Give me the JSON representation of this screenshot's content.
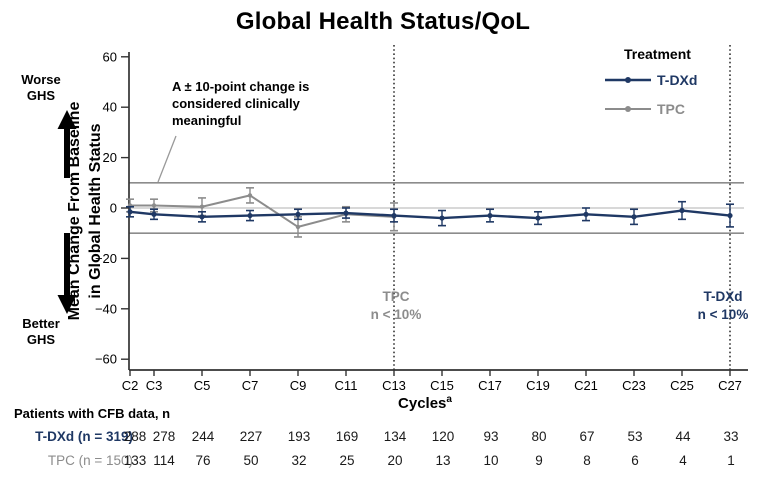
{
  "title": "Global Health Status/QoL",
  "colors": {
    "tdxd": "#1f3864",
    "tpc": "#8c8c8c",
    "reference_line": "#8c8c8c",
    "zero_line": "#b0b0b0",
    "axis": "#333333",
    "dashed_line": "#262626",
    "annotation_leader": "#999999",
    "table_values": "#1a1a1a"
  },
  "left_labels": {
    "worse_line1": "Worse",
    "worse_line2": "GHS",
    "better_line1": "Better",
    "better_line2": "GHS"
  },
  "y_axis": {
    "title_line1": "Mean Change From Baseline",
    "title_line2": "in Global Health Status"
  },
  "x_axis": {
    "label": "Cycles",
    "superscript": "a"
  },
  "annotation": {
    "line1": "A ± 10-point change is",
    "line2": "considered clinically",
    "line3": "meaningful"
  },
  "legend": {
    "title": "Treatment",
    "items": [
      {
        "label": "T-DXd",
        "color": "#1f3864"
      },
      {
        "label": "TPC",
        "color": "#8c8c8c"
      }
    ]
  },
  "dropouts": {
    "tpc_line1": "TPC",
    "tpc_line2": "n < 10%",
    "tdxd_line1": "T-DXd",
    "tdxd_line2": "n < 10%"
  },
  "chart_data": {
    "type": "line",
    "title": "Global Health Status/QoL",
    "xlabel": "Cycles",
    "ylabel": "Mean Change From Baseline in Global Health Status",
    "ylim": [
      -60,
      60
    ],
    "y_ticks": [
      60,
      40,
      20,
      0,
      -20,
      -40,
      -60
    ],
    "categories": [
      "C2",
      "C3",
      "C5",
      "C7",
      "C9",
      "C11",
      "C13",
      "C15",
      "C17",
      "C19",
      "C21",
      "C23",
      "C25",
      "C27"
    ],
    "cycles": [
      2,
      3,
      5,
      7,
      9,
      11,
      13,
      15,
      17,
      19,
      21,
      23,
      25,
      27
    ],
    "reference_lines": [
      10,
      0,
      -10
    ],
    "grid": false,
    "legend_position": "top-right",
    "series": [
      {
        "name": "T-DXd",
        "color": "#1f3864",
        "values": [
          -1.5,
          -2.5,
          -3.5,
          -3,
          -2.5,
          -2,
          -3,
          -4,
          -3,
          -4,
          -2.5,
          -3.5,
          -1,
          -3
        ],
        "errors": [
          2,
          2,
          2,
          2,
          2,
          2,
          2.5,
          3,
          2.5,
          2.5,
          2.5,
          3,
          3.5,
          4.5
        ]
      },
      {
        "name": "TPC",
        "color": "#8c8c8c",
        "values": [
          1,
          1,
          0.5,
          5,
          -7.5,
          -2.5,
          -3.5,
          null,
          null,
          null,
          null,
          null,
          null,
          null
        ],
        "errors": [
          2.5,
          2.5,
          3.5,
          3,
          4,
          3,
          5.5,
          null,
          null,
          null,
          null,
          null,
          null,
          null
        ]
      }
    ],
    "vlines": [
      {
        "cycle": 13,
        "label": "TPC n < 10%"
      },
      {
        "cycle": 27,
        "label": "T-DXd n < 10%"
      }
    ]
  },
  "table": {
    "header": "Patients with CFB data, n",
    "rows": [
      {
        "label": "T-DXd (n = 319)",
        "color": "#1f3864",
        "values": [
          288,
          278,
          244,
          227,
          193,
          169,
          134,
          120,
          93,
          80,
          67,
          53,
          44,
          33
        ]
      },
      {
        "label": "TPC (n = 150)",
        "color": "#8c8c8c",
        "values": [
          133,
          114,
          76,
          50,
          32,
          25,
          20,
          13,
          10,
          9,
          8,
          6,
          4,
          1
        ]
      }
    ]
  }
}
